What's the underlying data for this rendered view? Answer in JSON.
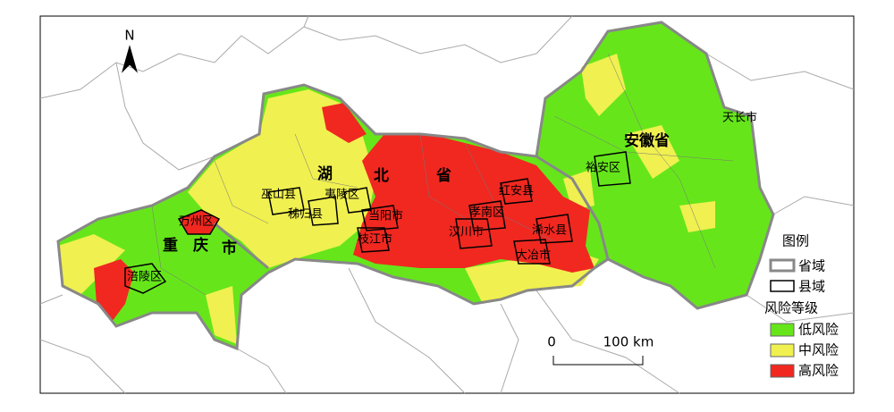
{
  "north_arrow": "N",
  "labels": {
    "hubei": [
      "湖",
      "北",
      "省"
    ],
    "chongqing": [
      "重",
      "庆",
      "市"
    ],
    "anhui": "安徽省",
    "counties": [
      "天长市",
      "裕安区",
      "巫山县",
      "夷陵区",
      "秭归县",
      "当阳市",
      "枝江市",
      "万州区",
      "涪陵区",
      "红安县",
      "孝南区",
      "汉川市",
      "浠水县",
      "大冶市"
    ]
  },
  "scale_bar": {
    "start": "0",
    "end": "100 km"
  },
  "legend": {
    "title": "图例",
    "province": "省域",
    "county": "县域",
    "risk_title": "风险等级",
    "risk_levels": [
      {
        "name": "低风险",
        "color": "#66e61a"
      },
      {
        "name": "中风险",
        "color": "#f0f050"
      },
      {
        "name": "高风险",
        "color": "#f02820"
      }
    ]
  }
}
